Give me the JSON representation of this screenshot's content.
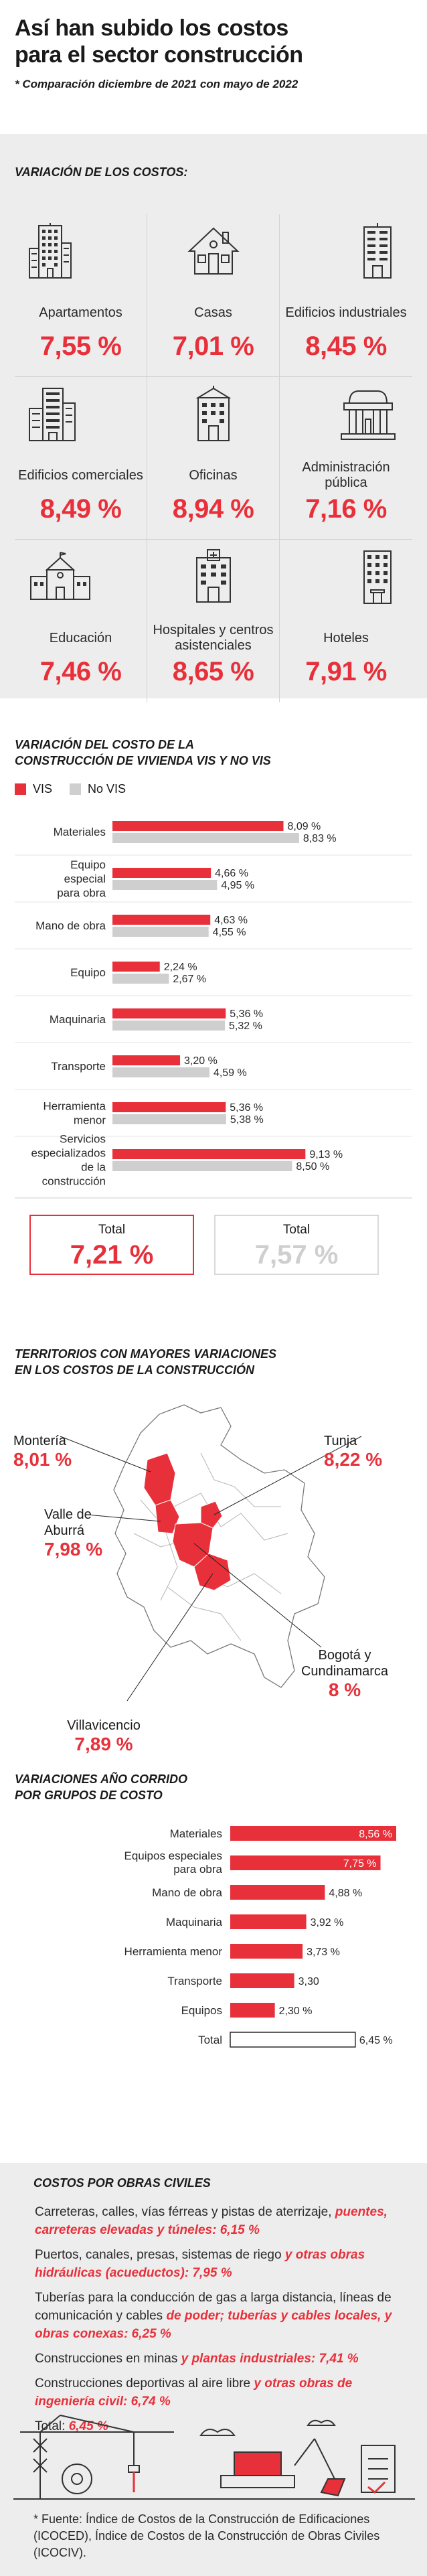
{
  "header": {
    "title_line1": "Así han subido los costos",
    "title_line2": "para el sector construcción",
    "subtitle": "* Comparación diciembre de 2021 con mayo de 2022"
  },
  "cost_grid": {
    "heading": "VARIACIÓN DE LOS COSTOS:",
    "items": [
      {
        "label": "Apartamentos",
        "value": "7,55 %",
        "icon": "apartment-building-icon"
      },
      {
        "label": "Casas",
        "value": "7,01 %",
        "icon": "house-icon"
      },
      {
        "label": "Edificios industriales",
        "value": "8,45 %",
        "icon": "industrial-building-icon"
      },
      {
        "label": "Edificios comerciales",
        "value": "8,49 %",
        "icon": "commercial-building-icon"
      },
      {
        "label": "Oficinas",
        "value": "8,94 %",
        "icon": "office-building-icon"
      },
      {
        "label": "Administración pública",
        "value": "7,16 %",
        "icon": "public-administration-building-icon"
      },
      {
        "label": "Educación",
        "value": "7,46 %",
        "icon": "school-icon"
      },
      {
        "label": "Hospitales y centros asistenciales",
        "value": "8,65 %",
        "icon": "hospital-icon"
      },
      {
        "label": "Hoteles",
        "value": "7,91 %",
        "icon": "hotel-icon"
      }
    ]
  },
  "vis_chart": {
    "heading_line1": "VARIACIÓN DEL COSTO DE LA",
    "heading_line2": "CONSTRUCCIÓN DE VIVIENDA VIS Y NO VIS",
    "legend": [
      {
        "name": "VIS",
        "color": "#e8303a"
      },
      {
        "name": "No VIS",
        "color": "#cfcfcf"
      }
    ],
    "total_vis_label": "Total",
    "total_vis_value": "7,21 %",
    "total_novis_label": "Total",
    "total_novis_value": "7,57 %"
  },
  "map_section": {
    "heading_line1": "TERRITORIOS CON MAYORES VARIACIONES",
    "heading_line2": "EN LOS COSTOS DE LA CONSTRUCCIÓN",
    "cities": [
      {
        "name": "Montería",
        "value": "8,01 %"
      },
      {
        "name": "Tunja",
        "value": "8,22 %"
      },
      {
        "name": "Valle de Aburrá",
        "value": "7,98 %"
      },
      {
        "name": "Bogotá y Cundinamarca",
        "value": "8 %"
      },
      {
        "name": "Villavicencio",
        "value": "7,89 %"
      }
    ]
  },
  "year_chart": {
    "heading_line1": "VARIACIONES AÑO CORRIDO",
    "heading_line2": "POR GRUPOS DE COSTO"
  },
  "civil_works": {
    "heading": "COSTOS POR OBRAS CIVILES",
    "entries": [
      {
        "plain": "Carreteras, calles, vías férreas y pistas de aterrizaje, ",
        "highlight": "puentes, carreteras elevadas y túneles: 6,15 %"
      },
      {
        "plain": "Puertos, canales, presas, sistemas de riego ",
        "highlight": "y otras obras hidráulicas (acueductos): 7,95 %"
      },
      {
        "plain": "Tuberías para la conducción de gas a larga distancia, líneas de comunicación y cables ",
        "highlight": "de poder; tuberías y cables locales, y obras conexas: 6,25 %"
      },
      {
        "plain": "Construcciones en minas ",
        "highlight": "y plantas industriales: 7,41 %"
      },
      {
        "plain": "Construcciones deportivas al aire libre ",
        "highlight": "y otras obras de ingeniería civil: 6,74 %"
      },
      {
        "plain": "Total: ",
        "highlight": "6,45 %"
      }
    ],
    "footnote": "* Fuente: Índice de Costos de la Construcción de Edificaciones (ICOCED), Índice de Costos de la Construcción de Obras Civiles (ICOCIV)."
  },
  "colors": {
    "accent": "#e8303a",
    "gray": "#cfcfcf",
    "panel": "#ededed"
  },
  "chart_data": [
    {
      "type": "bar",
      "orientation": "horizontal",
      "title": "VARIACIÓN DEL COSTO DE LA CONSTRUCCIÓN DE VIVIENDA VIS Y NO VIS",
      "categories": [
        "Materiales",
        "Equipo especial para obra",
        "Mano de obra",
        "Equipo",
        "Maquinaria",
        "Transporte",
        "Herramienta menor",
        "Servicios especializados de la construcción"
      ],
      "series": [
        {
          "name": "VIS",
          "values": [
            8.09,
            4.66,
            4.63,
            2.24,
            5.36,
            3.2,
            5.36,
            9.13
          ],
          "labels": [
            "8,09 %",
            "4,66 %",
            "4,63 %",
            "2,24 %",
            "5,36 %",
            "3,20 %",
            "5,36 %",
            "9,13 %"
          ],
          "color": "#e8303a"
        },
        {
          "name": "No VIS",
          "values": [
            8.83,
            4.95,
            4.55,
            2.67,
            5.32,
            4.59,
            5.38,
            8.5
          ],
          "labels": [
            "8,83 %",
            "4,95 %",
            "4,55 %",
            "2,67 %",
            "5,32 %",
            "4,59 %",
            "5,38 %",
            "8,50 %"
          ],
          "color": "#cfcfcf"
        }
      ],
      "legend": "top-left",
      "grid": false
    },
    {
      "type": "bar",
      "orientation": "horizontal",
      "title": "VARIACIONES AÑO CORRIDO POR GRUPOS DE COSTO",
      "categories": [
        "Materiales",
        "Equipos especiales para obra",
        "Mano de obra",
        "Maquinaria",
        "Herramienta menor",
        "Transporte",
        "Equipos",
        "Total"
      ],
      "values": [
        8.56,
        7.75,
        4.88,
        3.92,
        3.73,
        3.3,
        2.3,
        6.45
      ],
      "labels": [
        "8,56 %",
        "7,75 %",
        "4,88 %",
        "3,92 %",
        "3,73 %",
        "3,30",
        "2,30 %",
        "6,45 %"
      ],
      "grid": false
    }
  ]
}
